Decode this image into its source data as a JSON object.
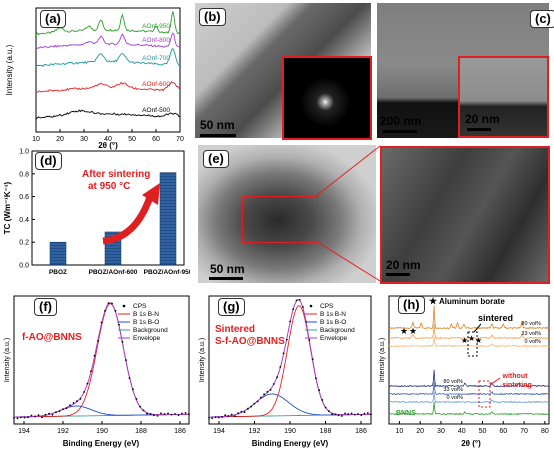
{
  "panel_labels": [
    "(a)",
    "(b)",
    "(c)",
    "(d)",
    "(e)",
    "(f)",
    "(g)",
    "(h)"
  ],
  "colors": {
    "black": "#000000",
    "red": "#e02020",
    "green": "#2e9b2e",
    "blue": "#2050c8",
    "purple": "#a040c8",
    "cyan": "#1a9aa0",
    "teal": "#3aa0a0",
    "orange": "#e08020",
    "darkblue": "#203080",
    "navy": "#2a5a9a"
  },
  "a": {
    "ylabel": "Intensity (a.u.)",
    "xlabel": "2θ (°)",
    "xticks": [
      "10",
      "20",
      "30",
      "40",
      "50",
      "60",
      "70"
    ],
    "series": [
      {
        "name": "AOnf-950",
        "color": "#2e9b2e"
      },
      {
        "name": "AOnf-800",
        "color": "#a040c8"
      },
      {
        "name": "AOnf-700",
        "color": "#1a9aa0"
      },
      {
        "name": "AOnf-600",
        "color": "#e02020"
      },
      {
        "name": "AOnf-500",
        "color": "#000000"
      }
    ]
  },
  "b": {
    "scale": "50 nm"
  },
  "c": {
    "scale_main": "200 nm",
    "scale_inset": "20 nm"
  },
  "d": {
    "ylabel": "TC (Wm⁻¹K⁻¹)",
    "yticks": [
      "0.0",
      "0.2",
      "0.4",
      "0.6",
      "0.8",
      "1.0"
    ],
    "annotation_line1": "After sintering",
    "annotation_line2": "at 950 °C"
  },
  "e": {
    "scale_main": "50 nm",
    "scale_zoom": "20 nm"
  },
  "f": {
    "ylabel": "Intensity (a.u.)",
    "xlabel": "Binding Energy (eV)",
    "xticks": [
      "194",
      "192",
      "190",
      "188",
      "186"
    ],
    "title": "f-AO@BNNS",
    "legend": [
      "CPS",
      "B 1s B-N",
      "B 1s B-O",
      "Background",
      "Envelope"
    ]
  },
  "g": {
    "ylabel": "Intensity (a.u.)",
    "xlabel": "Binding Energy (eV)",
    "xticks": [
      "194",
      "192",
      "190",
      "188",
      "186"
    ],
    "title_line1": "Sintered",
    "title_line2": "S-f-AO@BNNS",
    "legend": [
      "CPS",
      "B 1s B-N",
      "B 1s B-O",
      "Background",
      "Envelope"
    ]
  },
  "h": {
    "ylabel": "Intensity (a.u.)",
    "xlabel": "2θ (°)",
    "xticks": [
      "10",
      "20",
      "30",
      "40",
      "50",
      "60",
      "70",
      "80"
    ],
    "legend": "Aluminum borate",
    "sintered": "sintered",
    "without": "without",
    "sintering": "sintering",
    "labels_top": [
      "80 vol%",
      "33 vol%",
      "0 vol%"
    ],
    "labels_bottom": [
      "80 vol%",
      "33 vol%",
      "0 vol%"
    ],
    "bnns": "BNNS"
  },
  "chart_data": [
    {
      "type": "bar",
      "categories": [
        "PBOZ",
        "PBOZ/AOnf-600",
        "PBOZ/AOnf-950"
      ],
      "values": [
        0.2,
        0.29,
        0.81
      ],
      "ylabel": "TC (Wm⁻¹K⁻¹)",
      "ylim": [
        0,
        1.0
      ]
    }
  ]
}
